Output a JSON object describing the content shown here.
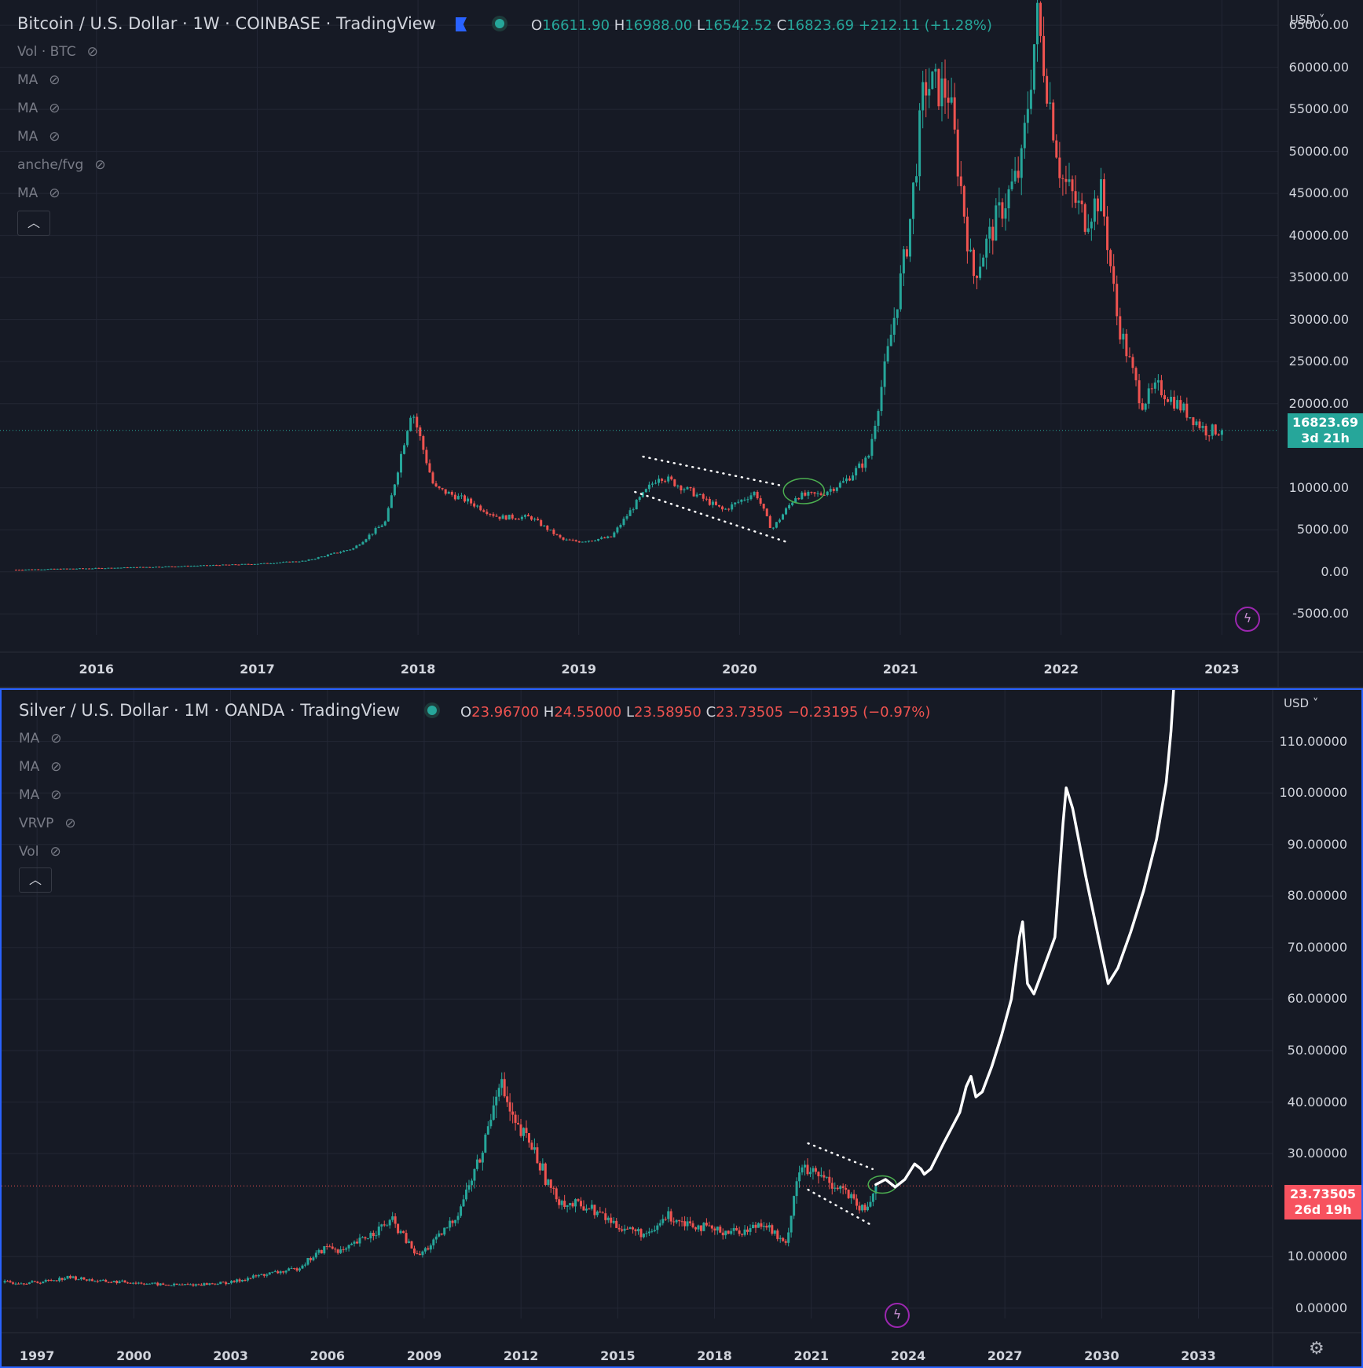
{
  "colors": {
    "up": "#26a69a",
    "down": "#ef5350",
    "background": "#161a25",
    "grid": "#232735",
    "drawing": "#ffffff",
    "circle": "#4caf50"
  },
  "bitcoin": {
    "title": "Bitcoin / U.S. Dollar · 1W · COINBASE · TradingView",
    "ohlc": {
      "o_label": "O",
      "o": "16611.90",
      "h_label": "H",
      "h": "16988.00",
      "l_label": "L",
      "l": "16542.52",
      "c_label": "C",
      "c": "16823.69",
      "chg": "+212.11 (+1.28%)"
    },
    "indicators": [
      "Vol · BTC",
      "MA",
      "MA",
      "MA",
      "anche/fvg",
      "MA"
    ],
    "collapse_icon": "chevron-up-icon",
    "currency": "USD ˅",
    "current_price": "16823.69",
    "countdown": "3d 21h",
    "y_ticks": [
      "65000.00",
      "60000.00",
      "55000.00",
      "50000.00",
      "45000.00",
      "40000.00",
      "35000.00",
      "30000.00",
      "25000.00",
      "20000.00",
      "10000.00",
      "5000.00",
      "0.00",
      "-5000.00"
    ],
    "x_ticks": [
      "2016",
      "2017",
      "2018",
      "2019",
      "2020",
      "2021",
      "2022",
      "2023"
    ]
  },
  "silver": {
    "title": "Silver / U.S. Dollar · 1M · OANDA · TradingView",
    "ohlc": {
      "o_label": "O",
      "o": "23.96700",
      "h_label": "H",
      "h": "24.55000",
      "l_label": "L",
      "l": "23.58950",
      "c_label": "C",
      "c": "23.73505",
      "chg": "−0.23195 (−0.97%)"
    },
    "indicators": [
      "MA",
      "MA",
      "MA",
      "VRVP",
      "Vol"
    ],
    "collapse_icon": "chevron-up-icon",
    "currency": "USD ˅",
    "current_price": "23.73505",
    "countdown": "26d 19h",
    "y_ticks": [
      "110.00000",
      "100.00000",
      "90.00000",
      "80.00000",
      "70.00000",
      "60.00000",
      "50.00000",
      "40.00000",
      "30.00000",
      "10.00000",
      "0.00000"
    ],
    "x_ticks": [
      "1997",
      "2000",
      "2003",
      "2006",
      "2009",
      "2012",
      "2015",
      "2018",
      "2021",
      "2024",
      "2027",
      "2030",
      "2033"
    ]
  },
  "chart_data": [
    {
      "type": "candlestick",
      "title": "Bitcoin / U.S. Dollar · 1W · COINBASE · TradingView",
      "xlim": [
        2015.4,
        2023.35
      ],
      "ylim": [
        -7500,
        68000
      ],
      "series": [
        {
          "x": [
            2015.5,
            2016.0,
            2016.5,
            2017.0,
            2017.3,
            2017.6,
            2017.8,
            2017.96,
            2018.1,
            2018.3,
            2018.5,
            2018.7,
            2018.9,
            2019.0,
            2019.2,
            2019.35,
            2019.5,
            2019.7,
            2019.9,
            2020.1,
            2020.2,
            2020.35,
            2020.5,
            2020.65,
            2020.8,
            2020.95,
            2021.05,
            2021.15,
            2021.3,
            2021.45,
            2021.6,
            2021.75,
            2021.85,
            2022.0,
            2022.15,
            2022.25,
            2022.35,
            2022.5,
            2022.6,
            2022.75,
            2022.9,
            2023.0
          ],
          "y": [
            250,
            420,
            650,
            950,
            1300,
            2800,
            6000,
            19500,
            10000,
            8500,
            6500,
            6500,
            3800,
            3600,
            4100,
            8000,
            11500,
            9500,
            7300,
            9500,
            5000,
            9000,
            9200,
            10700,
            13500,
            29000,
            40000,
            58000,
            57000,
            35000,
            42000,
            48000,
            66000,
            47000,
            42000,
            45000,
            30000,
            20000,
            22000,
            19500,
            16800,
            16823.69
          ]
        }
      ]
    },
    {
      "type": "candlestick",
      "title": "Silver / U.S. Dollar · 1M · OANDA · TradingView",
      "xlim": [
        1995.9,
        2035.3
      ],
      "ylim": [
        -2,
        120
      ],
      "series": [
        {
          "x": [
            1996,
            1997,
            1998,
            1999,
            2000,
            2001,
            2002,
            2003,
            2004,
            2005,
            2006,
            2006.5,
            2007,
            2008,
            2008.8,
            2009.5,
            2010,
            2010.8,
            2011.3,
            2011.8,
            2012.3,
            2013,
            2013.5,
            2014,
            2015,
            2016,
            2016.5,
            2017,
            2018,
            2019,
            2019.5,
            2020.2,
            2020.6,
            2021,
            2021.5,
            2022,
            2022.5,
            2022.7,
            2023
          ],
          "y": [
            5,
            5,
            6,
            5.2,
            5,
            4.5,
            4.6,
            5,
            6.5,
            7.5,
            12,
            11,
            13,
            17,
            10,
            14,
            18,
            30,
            45,
            35,
            32,
            22,
            20,
            20,
            16,
            14,
            18,
            17,
            15,
            15,
            17,
            12,
            27,
            26,
            25,
            23,
            19,
            19,
            23.73505
          ]
        }
      ]
    }
  ]
}
